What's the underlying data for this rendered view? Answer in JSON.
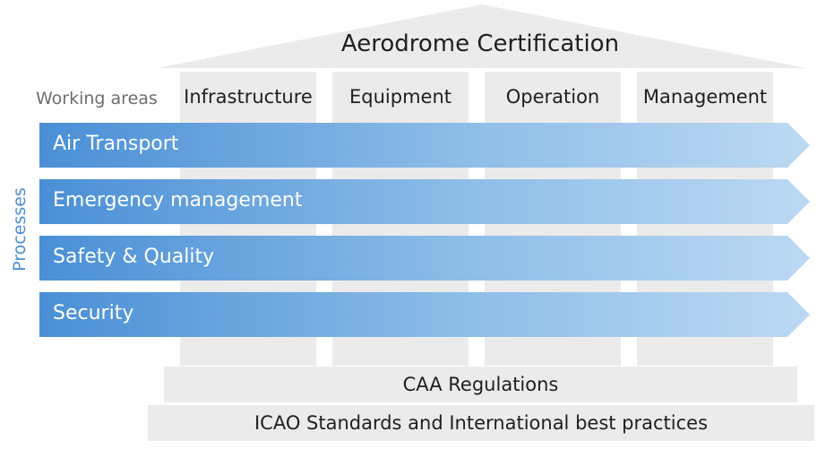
{
  "roof": {
    "title": "Aerodrome Certification"
  },
  "working_areas": {
    "label": "Working areas",
    "pillars": [
      "Infrastructure",
      "Equipment",
      "Operation",
      "Management"
    ]
  },
  "processes": {
    "label": "Processes",
    "items": [
      "Air Transport",
      "Emergency management",
      "Safety & Quality",
      "Security"
    ]
  },
  "foundation": {
    "caa": "CAA Regulations",
    "icao": "ICAO Standards and International best practices"
  },
  "colors": {
    "arrow_start": "#4a8fd6",
    "arrow_end": "#b6d6f2",
    "pillar_fill": "#ebebeb",
    "processes_label": "#4a90d6"
  }
}
